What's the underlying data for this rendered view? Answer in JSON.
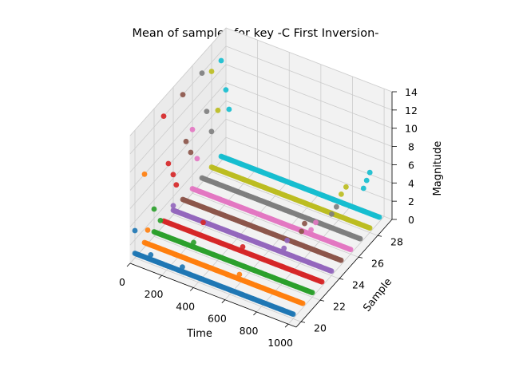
{
  "chart_data": {
    "type": "scatter",
    "projection": "3d",
    "title": "Mean of samples for key -C First Inversion-",
    "xlabel": "Time",
    "ylabel": "Sample",
    "zlabel": "Magnitude",
    "xlim": [
      0,
      1050
    ],
    "ylim": [
      19.5,
      29.5
    ],
    "zlim": [
      0,
      14
    ],
    "xticks": [
      "0",
      "200",
      "400",
      "600",
      "800",
      "1000"
    ],
    "yticks": [
      "20",
      "22",
      "24",
      "26",
      "28"
    ],
    "zticks": [
      "0",
      "2",
      "4",
      "6",
      "8",
      "10",
      "12",
      "14"
    ],
    "grid": true,
    "series_colors": [
      "#1f77b4",
      "#ff7f0e",
      "#2ca02c",
      "#d62728",
      "#9467bd",
      "#8c564b",
      "#e377c2",
      "#7f7f7f",
      "#bcbd22",
      "#17becf"
    ],
    "series": [
      {
        "sample": 20,
        "baseline": 0.5,
        "spikes": [
          [
            0,
            3.0
          ],
          [
            100,
            1.0
          ],
          [
            300,
            1.0
          ]
        ]
      },
      {
        "sample": 21,
        "baseline": 0.5,
        "spikes": [
          [
            0,
            8.0
          ],
          [
            20,
            2.0
          ],
          [
            600,
            1.0
          ]
        ]
      },
      {
        "sample": 22,
        "baseline": 0.5,
        "spikes": [
          [
            0,
            3.0
          ],
          [
            40,
            2.0
          ],
          [
            250,
            1.0
          ]
        ]
      },
      {
        "sample": 23,
        "baseline": 0.5,
        "spikes": [
          [
            0,
            12.0
          ],
          [
            30,
            7.0
          ],
          [
            60,
            6.0
          ],
          [
            80,
            5.0
          ],
          [
            250,
            2.0
          ],
          [
            500,
            1.0
          ]
        ]
      },
      {
        "sample": 24,
        "baseline": 0.5,
        "spikes": [
          [
            0,
            1.0
          ],
          [
            700,
            1.0
          ],
          [
            720,
            2.0
          ]
        ]
      },
      {
        "sample": 25,
        "baseline": 0.5,
        "spikes": [
          [
            0,
            12.0
          ],
          [
            20,
            7.0
          ],
          [
            50,
            6.0
          ],
          [
            750,
            2.0
          ],
          [
            770,
            3.0
          ]
        ]
      },
      {
        "sample": 26,
        "baseline": 0.5,
        "spikes": [
          [
            0,
            7.0
          ],
          [
            30,
            4.0
          ],
          [
            750,
            1.0
          ],
          [
            780,
            2.0
          ]
        ]
      },
      {
        "sample": 27,
        "baseline": 0.5,
        "spikes": [
          [
            0,
            12.0
          ],
          [
            30,
            8.0
          ],
          [
            60,
            6.0
          ],
          [
            820,
            2.0
          ],
          [
            850,
            3.0
          ]
        ]
      },
      {
        "sample": 28,
        "baseline": 0.5,
        "spikes": [
          [
            0,
            11.0
          ],
          [
            40,
            7.0
          ],
          [
            820,
            3.0
          ],
          [
            850,
            4.0
          ]
        ]
      },
      {
        "sample": 29,
        "baseline": 0.5,
        "spikes": [
          [
            0,
            11.0
          ],
          [
            30,
            8.0
          ],
          [
            50,
            6.0
          ],
          [
            900,
            3.0
          ],
          [
            920,
            4.0
          ],
          [
            940,
            5.0
          ]
        ]
      }
    ]
  }
}
